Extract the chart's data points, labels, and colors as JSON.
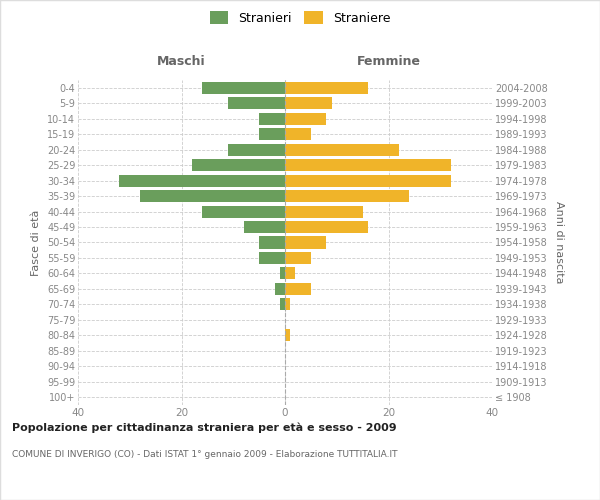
{
  "age_groups": [
    "100+",
    "95-99",
    "90-94",
    "85-89",
    "80-84",
    "75-79",
    "70-74",
    "65-69",
    "60-64",
    "55-59",
    "50-54",
    "45-49",
    "40-44",
    "35-39",
    "30-34",
    "25-29",
    "20-24",
    "15-19",
    "10-14",
    "5-9",
    "0-4"
  ],
  "birth_years": [
    "≤ 1908",
    "1909-1913",
    "1914-1918",
    "1919-1923",
    "1924-1928",
    "1929-1933",
    "1934-1938",
    "1939-1943",
    "1944-1948",
    "1949-1953",
    "1954-1958",
    "1959-1963",
    "1964-1968",
    "1969-1973",
    "1974-1978",
    "1979-1983",
    "1984-1988",
    "1989-1993",
    "1994-1998",
    "1999-2003",
    "2004-2008"
  ],
  "maschi": [
    0,
    0,
    0,
    0,
    0,
    0,
    1,
    2,
    1,
    5,
    5,
    8,
    16,
    28,
    32,
    18,
    11,
    5,
    5,
    11,
    16
  ],
  "femmine": [
    0,
    0,
    0,
    0,
    1,
    0,
    1,
    5,
    2,
    5,
    8,
    16,
    15,
    24,
    32,
    32,
    22,
    5,
    8,
    9,
    16
  ],
  "color_maschi": "#6a9e5c",
  "color_femmine": "#f0b429",
  "title_main": "Popolazione per cittadinanza straniera per età e sesso - 2009",
  "title_sub": "COMUNE DI INVERIGO (CO) - Dati ISTAT 1° gennaio 2009 - Elaborazione TUTTITALIA.IT",
  "legend_maschi": "Stranieri",
  "legend_femmine": "Straniere",
  "xlabel_left": "Maschi",
  "xlabel_right": "Femmine",
  "ylabel_left": "Fasce di età",
  "ylabel_right": "Anni di nascita",
  "xlim": 40,
  "background_color": "#ffffff",
  "grid_color": "#cccccc"
}
